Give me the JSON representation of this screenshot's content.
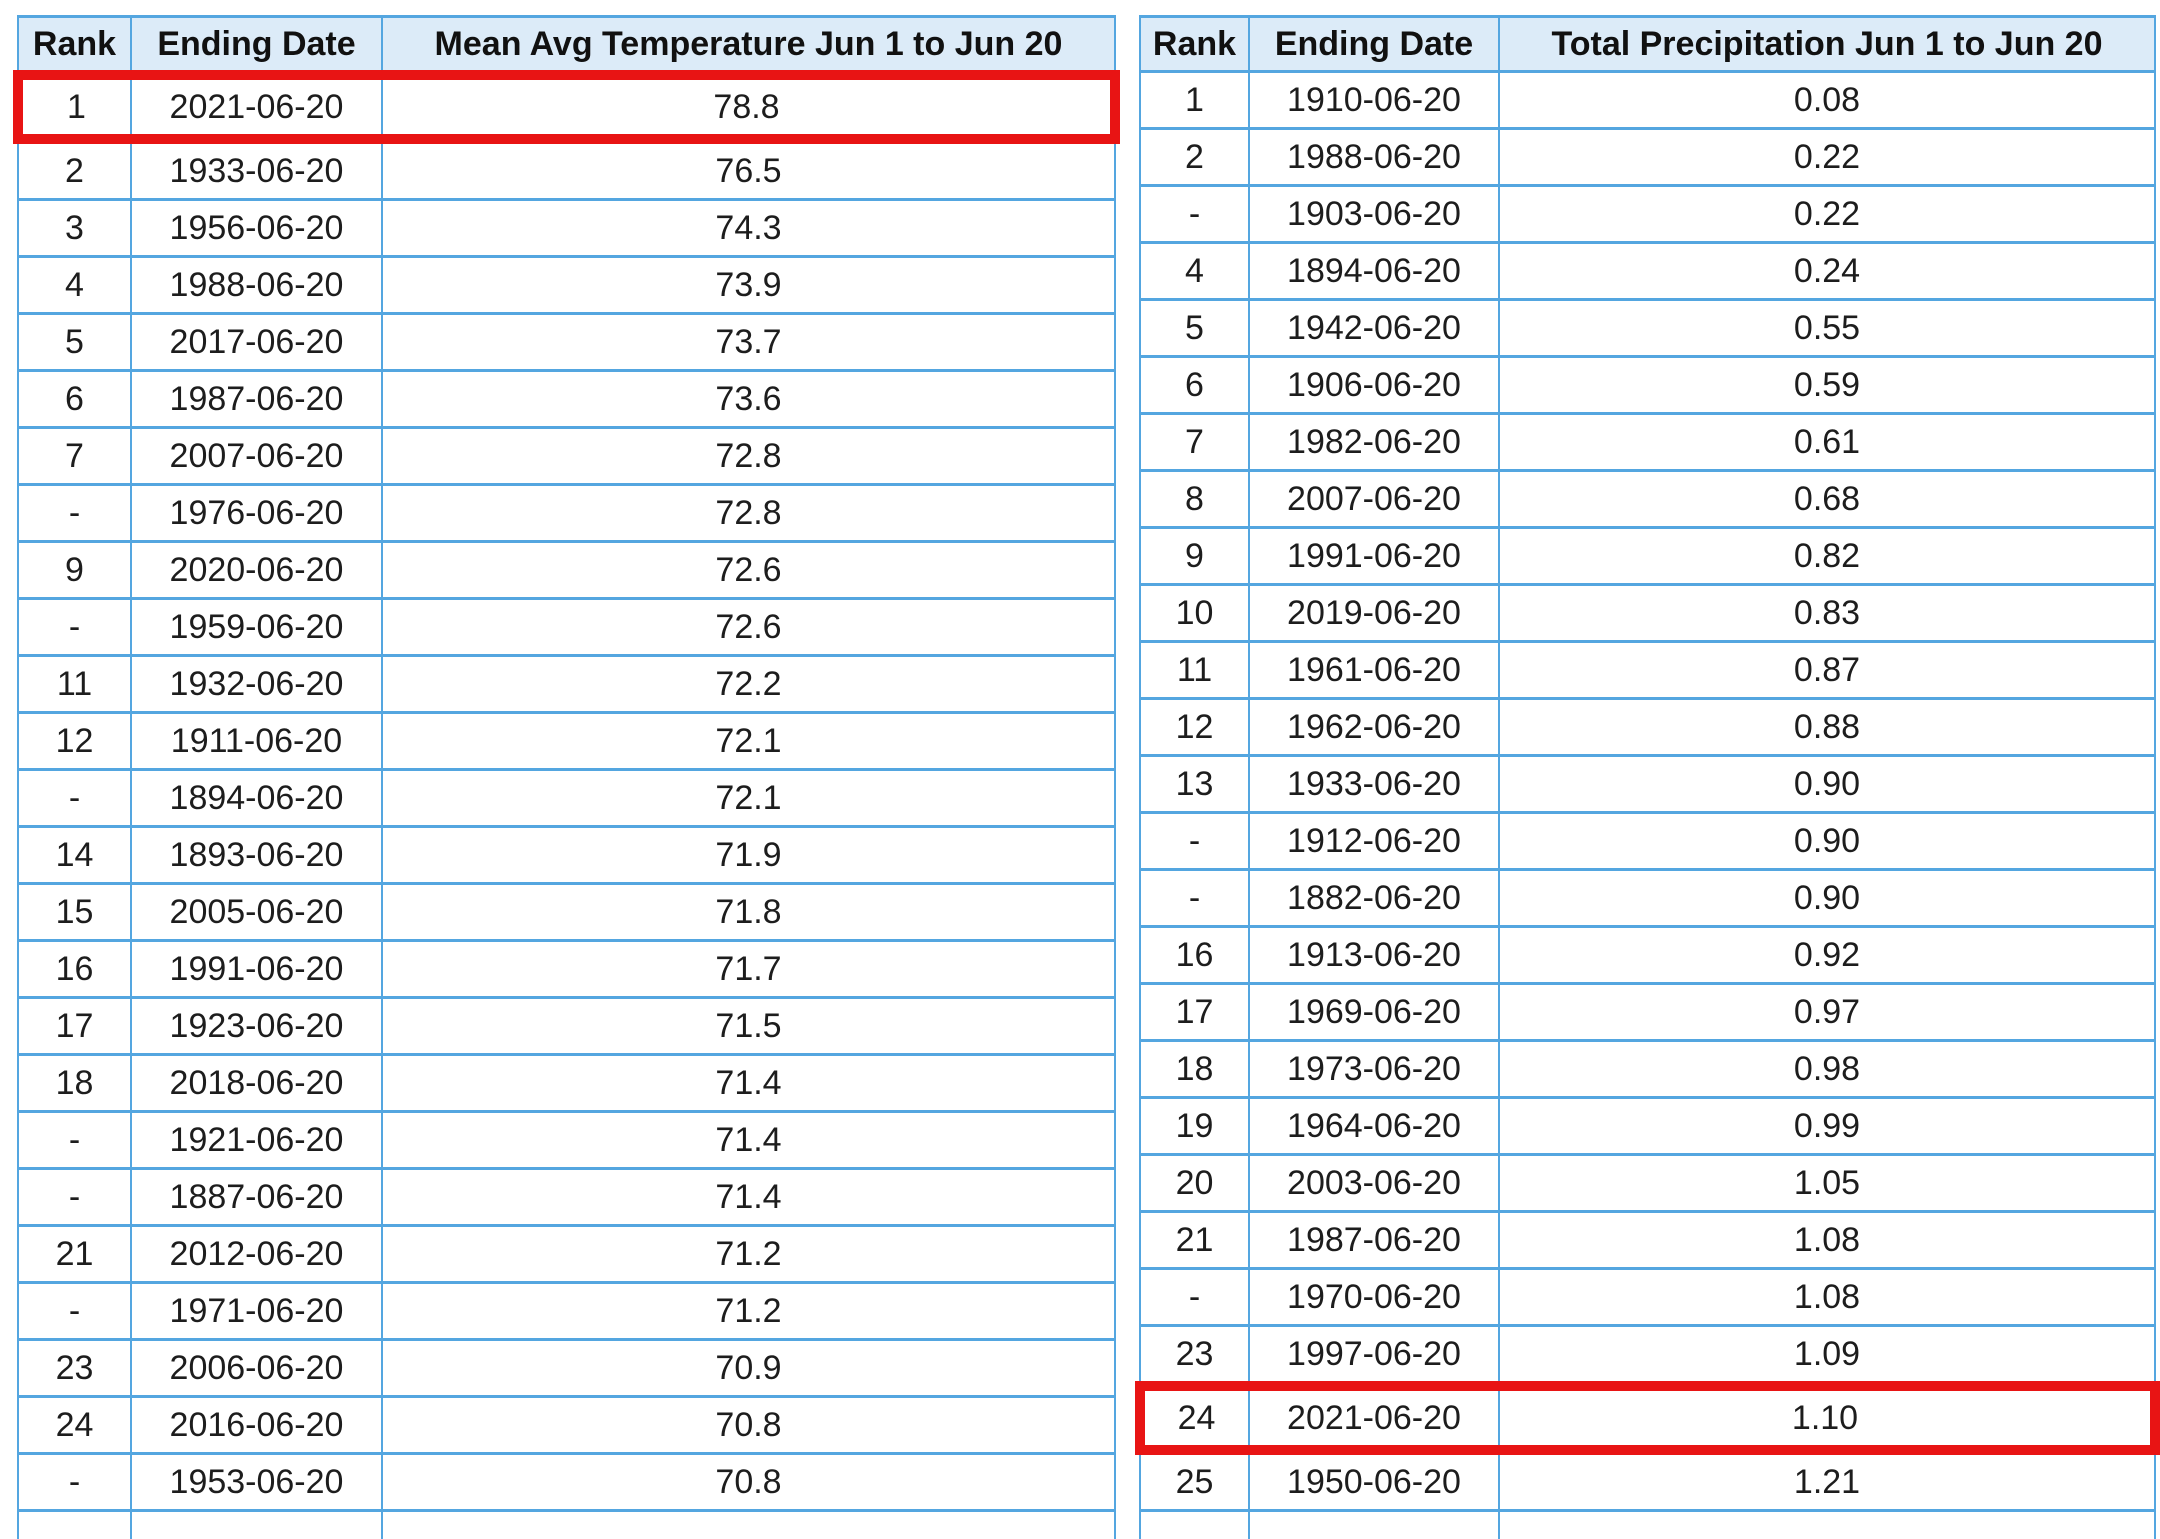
{
  "colors": {
    "table_border_blue": "#54a6e0",
    "header_background": "#dcebf8",
    "highlight_red": "#e81414",
    "text": "#1d1d1d",
    "row_background": "#ffffff"
  },
  "chart_data": [
    {
      "type": "table",
      "name": "mean-avg-temperature-rankings",
      "columns": [
        "Rank",
        "Ending Date",
        "Mean Avg Temperature Jun 1 to Jun 20"
      ],
      "highlighted_row": 0,
      "rows": [
        [
          "1",
          "2021-06-20",
          "78.8"
        ],
        [
          "2",
          "1933-06-20",
          "76.5"
        ],
        [
          "3",
          "1956-06-20",
          "74.3"
        ],
        [
          "4",
          "1988-06-20",
          "73.9"
        ],
        [
          "5",
          "2017-06-20",
          "73.7"
        ],
        [
          "6",
          "1987-06-20",
          "73.6"
        ],
        [
          "7",
          "2007-06-20",
          "72.8"
        ],
        [
          "-",
          "1976-06-20",
          "72.8"
        ],
        [
          "9",
          "2020-06-20",
          "72.6"
        ],
        [
          "-",
          "1959-06-20",
          "72.6"
        ],
        [
          "11",
          "1932-06-20",
          "72.2"
        ],
        [
          "12",
          "1911-06-20",
          "72.1"
        ],
        [
          "-",
          "1894-06-20",
          "72.1"
        ],
        [
          "14",
          "1893-06-20",
          "71.9"
        ],
        [
          "15",
          "2005-06-20",
          "71.8"
        ],
        [
          "16",
          "1991-06-20",
          "71.7"
        ],
        [
          "17",
          "1923-06-20",
          "71.5"
        ],
        [
          "18",
          "2018-06-20",
          "71.4"
        ],
        [
          "-",
          "1921-06-20",
          "71.4"
        ],
        [
          "-",
          "1887-06-20",
          "71.4"
        ],
        [
          "21",
          "2012-06-20",
          "71.2"
        ],
        [
          "-",
          "1971-06-20",
          "71.2"
        ],
        [
          "23",
          "2006-06-20",
          "70.9"
        ],
        [
          "24",
          "2016-06-20",
          "70.8"
        ],
        [
          "-",
          "1953-06-20",
          "70.8"
        ],
        [
          "",
          "",
          ""
        ]
      ]
    },
    {
      "type": "table",
      "name": "total-precipitation-rankings",
      "columns": [
        "Rank",
        "Ending Date",
        "Total Precipitation Jun 1 to Jun 20"
      ],
      "highlighted_row": 23,
      "rows": [
        [
          "1",
          "1910-06-20",
          "0.08"
        ],
        [
          "2",
          "1988-06-20",
          "0.22"
        ],
        [
          "-",
          "1903-06-20",
          "0.22"
        ],
        [
          "4",
          "1894-06-20",
          "0.24"
        ],
        [
          "5",
          "1942-06-20",
          "0.55"
        ],
        [
          "6",
          "1906-06-20",
          "0.59"
        ],
        [
          "7",
          "1982-06-20",
          "0.61"
        ],
        [
          "8",
          "2007-06-20",
          "0.68"
        ],
        [
          "9",
          "1991-06-20",
          "0.82"
        ],
        [
          "10",
          "2019-06-20",
          "0.83"
        ],
        [
          "11",
          "1961-06-20",
          "0.87"
        ],
        [
          "12",
          "1962-06-20",
          "0.88"
        ],
        [
          "13",
          "1933-06-20",
          "0.90"
        ],
        [
          "-",
          "1912-06-20",
          "0.90"
        ],
        [
          "-",
          "1882-06-20",
          "0.90"
        ],
        [
          "16",
          "1913-06-20",
          "0.92"
        ],
        [
          "17",
          "1969-06-20",
          "0.97"
        ],
        [
          "18",
          "1973-06-20",
          "0.98"
        ],
        [
          "19",
          "1964-06-20",
          "0.99"
        ],
        [
          "20",
          "2003-06-20",
          "1.05"
        ],
        [
          "21",
          "1987-06-20",
          "1.08"
        ],
        [
          "-",
          "1970-06-20",
          "1.08"
        ],
        [
          "23",
          "1997-06-20",
          "1.09"
        ],
        [
          "24",
          "2021-06-20",
          "1.10"
        ],
        [
          "25",
          "1950-06-20",
          "1.21"
        ],
        [
          "",
          "",
          ""
        ]
      ]
    }
  ]
}
